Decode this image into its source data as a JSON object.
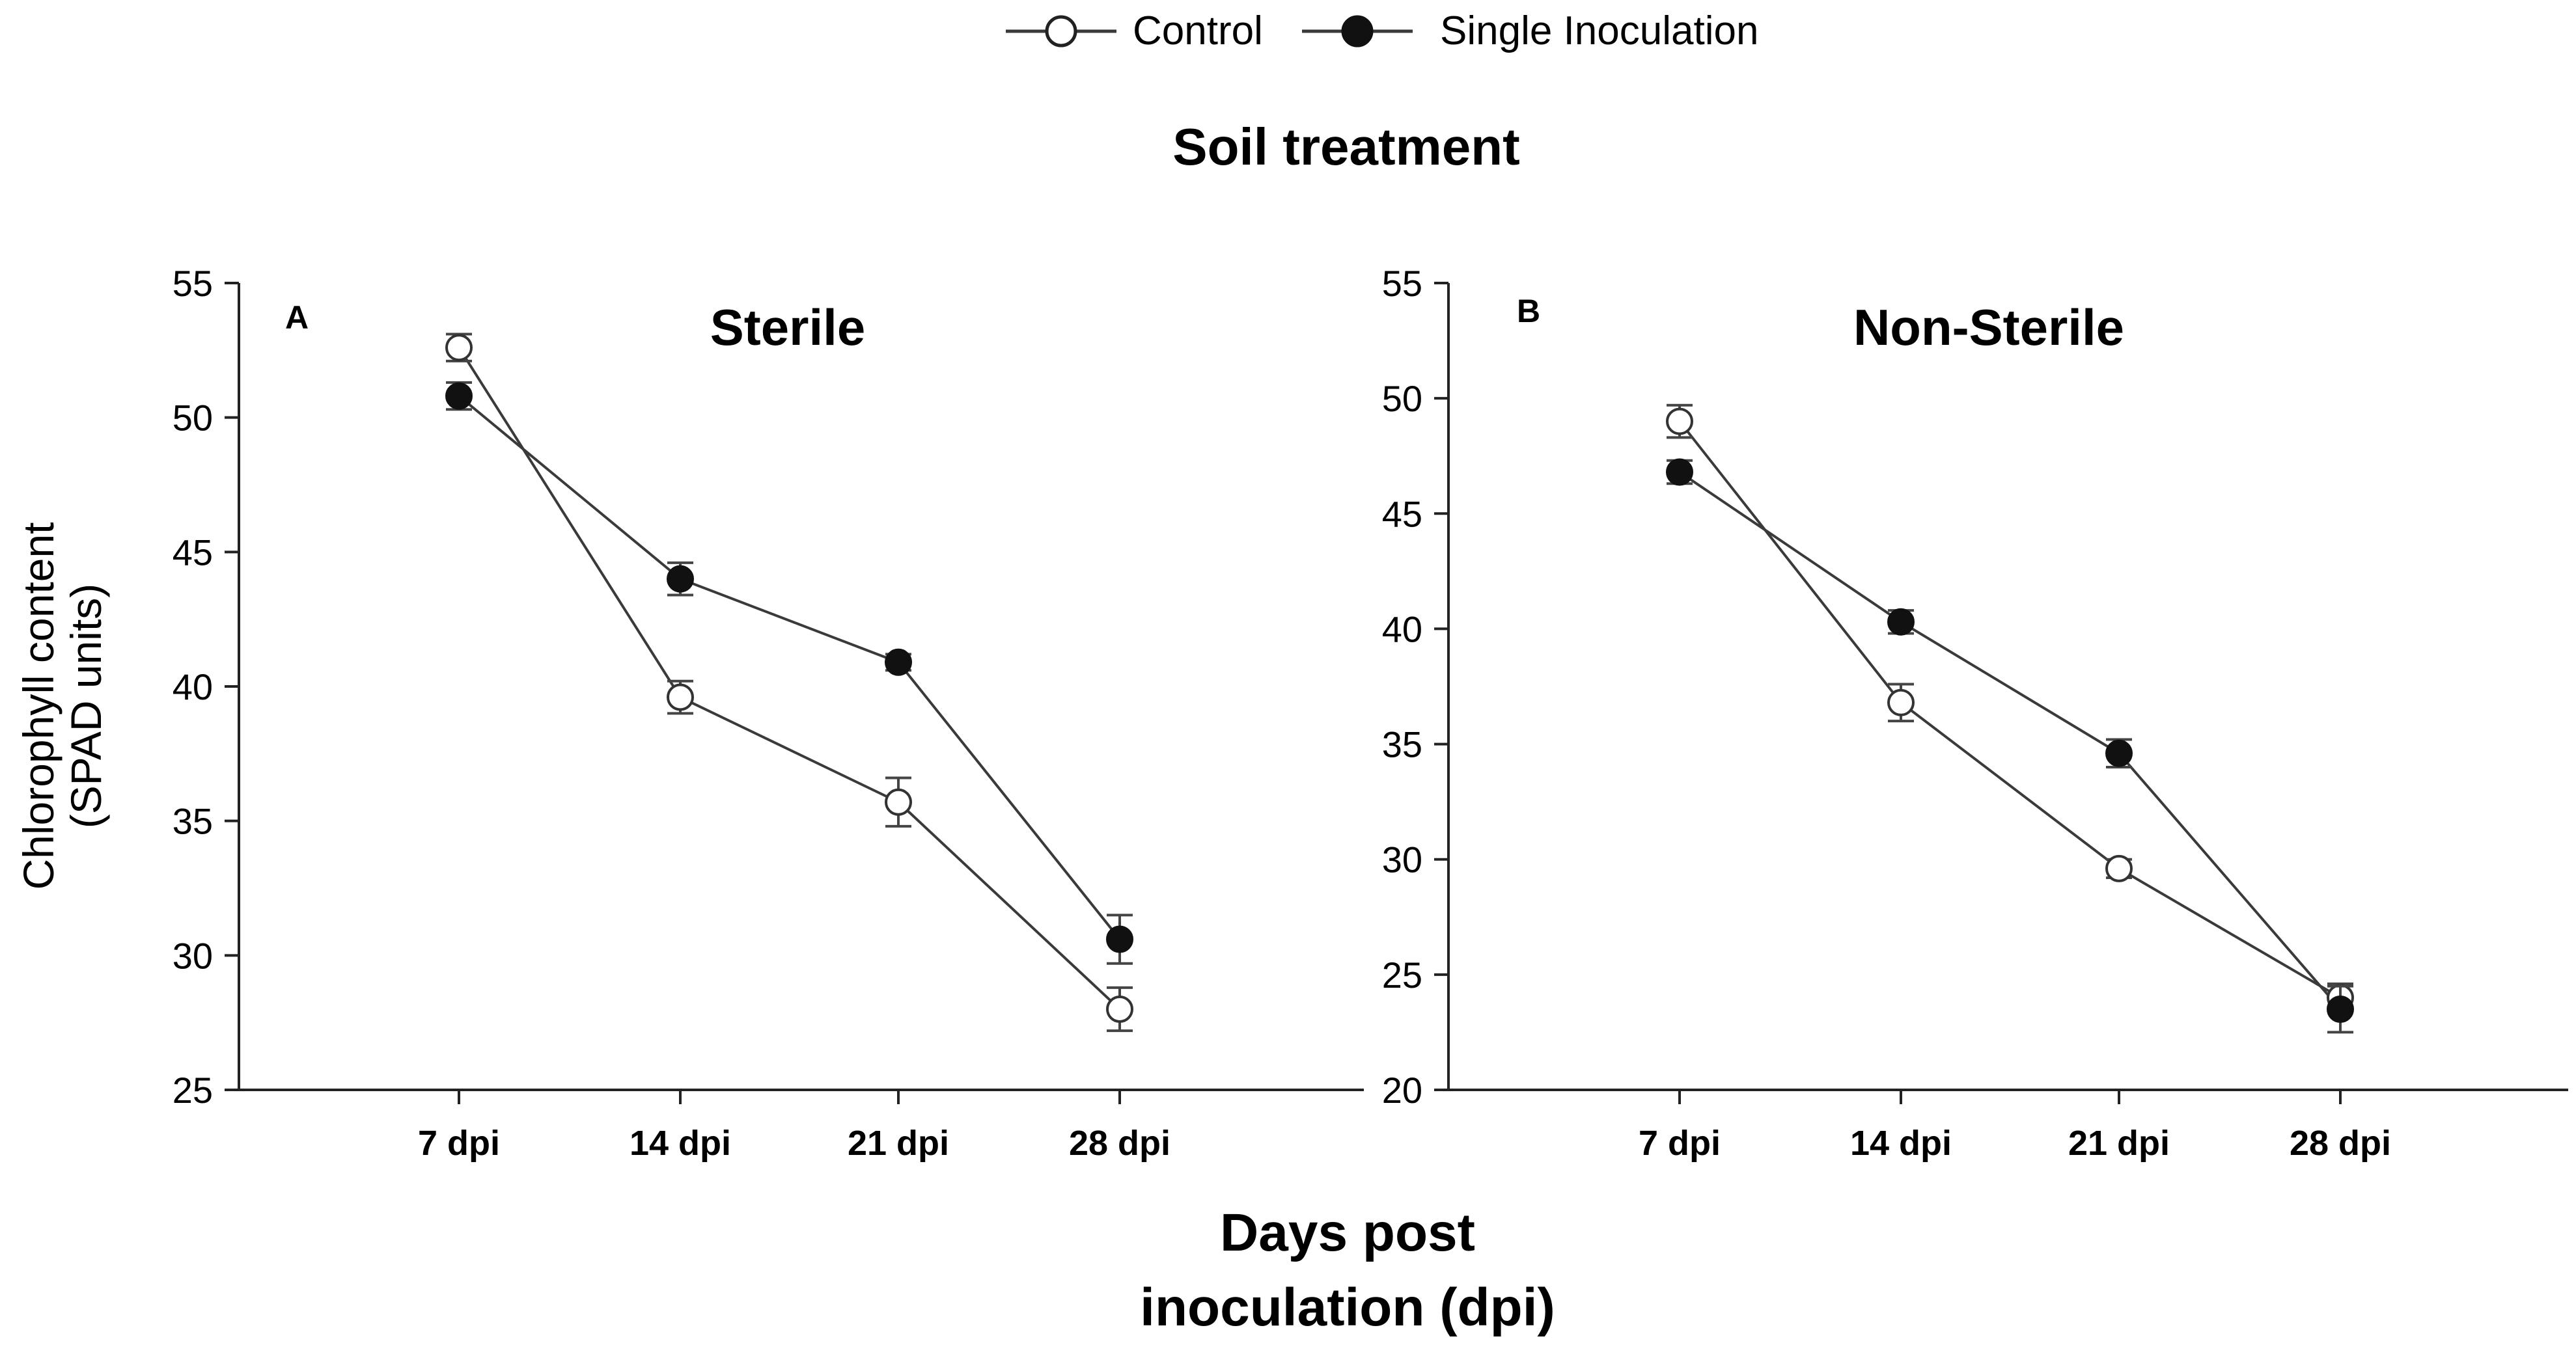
{
  "legend": {
    "entries": [
      {
        "name": "Control",
        "marker": "open-circle"
      },
      {
        "name": "Single Inoculation",
        "marker": "filled-circle"
      }
    ],
    "placement": "top-center"
  },
  "figure_title": "Soil treatment",
  "xlabel_line1": "Days post",
  "xlabel_line2": "inoculation (dpi)",
  "ylabel_line1": "Chlorophyll content",
  "ylabel_line2": "(SPAD units)",
  "colors": {
    "line": "#3a3a3a",
    "axis": "#222222",
    "filled_marker": "#111111",
    "open_marker": "#ffffff"
  },
  "chart_data": [
    {
      "type": "line",
      "panel_label": "A",
      "title": "Sterile",
      "categories": [
        "7 dpi",
        "14 dpi",
        "21 dpi",
        "28 dpi"
      ],
      "ylim": [
        25,
        55
      ],
      "yticks": [
        25,
        30,
        35,
        40,
        45,
        50,
        55
      ],
      "series": [
        {
          "name": "Control",
          "marker": "open-circle",
          "values": [
            52.6,
            39.6,
            35.7,
            28.0
          ],
          "errors": [
            0.5,
            0.6,
            0.9,
            0.8
          ]
        },
        {
          "name": "Single Inoculation",
          "marker": "filled-circle",
          "values": [
            50.8,
            44.0,
            40.9,
            30.6
          ],
          "errors": [
            0.5,
            0.6,
            0.3,
            0.9
          ]
        }
      ]
    },
    {
      "type": "line",
      "panel_label": "B",
      "title": "Non-Sterile",
      "categories": [
        "7 dpi",
        "14 dpi",
        "21 dpi",
        "28 dpi"
      ],
      "ylim": [
        20,
        55
      ],
      "yticks": [
        20,
        25,
        30,
        35,
        40,
        45,
        50,
        55
      ],
      "series": [
        {
          "name": "Control",
          "marker": "open-circle",
          "values": [
            49.0,
            36.8,
            29.6,
            24.0
          ],
          "errors": [
            0.7,
            0.8,
            0.4,
            0.6
          ]
        },
        {
          "name": "Single Inoculation",
          "marker": "filled-circle",
          "values": [
            46.8,
            40.3,
            34.6,
            23.5
          ],
          "errors": [
            0.5,
            0.5,
            0.6,
            1.0
          ]
        }
      ]
    }
  ]
}
